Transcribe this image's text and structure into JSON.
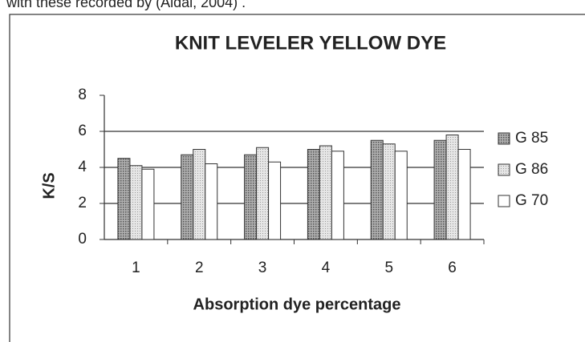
{
  "context_text": "with these recorded by (Aldal, 2004) .",
  "chart_data": {
    "type": "bar",
    "title": "KNIT LEVELER  YELLOW DYE",
    "x_label": "Absorption dye percentage",
    "y_label": "K/S",
    "categories": [
      "1",
      "2",
      "3",
      "4",
      "5",
      "6"
    ],
    "series": [
      {
        "name": "G 85",
        "color": "#9a9a9a",
        "values": [
          4.5,
          4.7,
          4.7,
          5.0,
          5.5,
          5.5
        ]
      },
      {
        "name": "G 86",
        "color": "#d8d8d8",
        "values": [
          4.1,
          5.0,
          5.1,
          5.2,
          5.3,
          5.8
        ]
      },
      {
        "name": "G 70",
        "color": "#ffffff",
        "values": [
          3.9,
          4.2,
          4.3,
          4.9,
          4.9,
          5.0
        ]
      }
    ],
    "ylim": [
      0,
      8
    ],
    "yticks": [
      0,
      2,
      4,
      6,
      8
    ],
    "grid": true,
    "legend": "right"
  }
}
